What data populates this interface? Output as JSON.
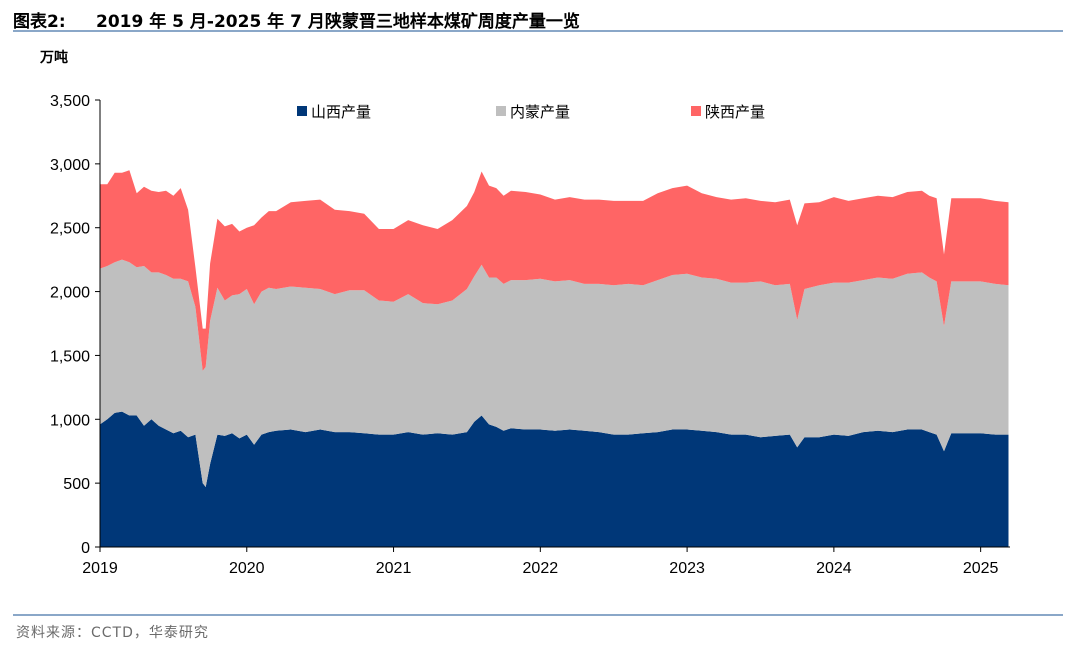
{
  "header": {
    "figure_label": "图表2:",
    "title": "2019 年 5 月-2025 年 7 月陕蒙晋三地样本煤矿周度产量一览"
  },
  "footer": {
    "source": "资料来源：CCTD，华泰研究"
  },
  "colors": {
    "shanxi": "#003778",
    "neimeng": "#bfbfbf",
    "shaanxi": "#ff6565",
    "axis": "#000000",
    "rule": "#8aa7c8"
  },
  "chart_data": {
    "type": "area",
    "stacked": true,
    "unit_label": "万吨",
    "ylim": [
      0,
      3500
    ],
    "yticks": [
      0,
      500,
      1000,
      1500,
      2000,
      2500,
      3000,
      3500
    ],
    "ytick_labels": [
      "0",
      "500",
      "1,000",
      "1,500",
      "2,000",
      "2,500",
      "3,000",
      "3,500"
    ],
    "xlim": [
      2019.0,
      2025.2
    ],
    "xticks": [
      2019,
      2020,
      2021,
      2022,
      2023,
      2024,
      2025
    ],
    "xtick_labels": [
      "2019",
      "2020",
      "2021",
      "2022",
      "2023",
      "2024",
      "2025"
    ],
    "legend_position": "top",
    "x": [
      2019.0,
      2019.05,
      2019.1,
      2019.15,
      2019.2,
      2019.25,
      2019.3,
      2019.35,
      2019.4,
      2019.45,
      2019.5,
      2019.55,
      2019.6,
      2019.65,
      2019.7,
      2019.72,
      2019.75,
      2019.8,
      2019.85,
      2019.9,
      2019.95,
      2020.0,
      2020.05,
      2020.1,
      2020.15,
      2020.2,
      2020.3,
      2020.4,
      2020.5,
      2020.6,
      2020.7,
      2020.8,
      2020.9,
      2021.0,
      2021.1,
      2021.2,
      2021.3,
      2021.4,
      2021.5,
      2021.55,
      2021.6,
      2021.65,
      2021.7,
      2021.75,
      2021.8,
      2021.9,
      2022.0,
      2022.1,
      2022.2,
      2022.3,
      2022.4,
      2022.5,
      2022.6,
      2022.7,
      2022.8,
      2022.9,
      2023.0,
      2023.1,
      2023.2,
      2023.3,
      2023.4,
      2023.5,
      2023.6,
      2023.7,
      2023.75,
      2023.8,
      2023.9,
      2024.0,
      2024.1,
      2024.2,
      2024.3,
      2024.4,
      2024.5,
      2024.6,
      2024.65,
      2024.7,
      2024.75,
      2024.8,
      2024.9,
      2025.0,
      2025.1,
      2025.19
    ],
    "series": [
      {
        "name": "山西产量",
        "values": [
          960,
          1000,
          1050,
          1060,
          1030,
          1030,
          950,
          1000,
          950,
          920,
          890,
          910,
          860,
          880,
          500,
          470,
          650,
          880,
          870,
          890,
          850,
          880,
          800,
          880,
          900,
          910,
          920,
          900,
          920,
          900,
          900,
          890,
          880,
          880,
          900,
          880,
          890,
          880,
          900,
          980,
          1030,
          960,
          940,
          910,
          930,
          920,
          920,
          910,
          920,
          910,
          900,
          880,
          880,
          890,
          900,
          920,
          920,
          910,
          900,
          880,
          880,
          860,
          870,
          880,
          780,
          860,
          860,
          880,
          870,
          900,
          910,
          900,
          920,
          920,
          900,
          880,
          750,
          890,
          890,
          890,
          880,
          880
        ]
      },
      {
        "name": "内蒙产量",
        "values": [
          1220,
          1200,
          1180,
          1190,
          1200,
          1160,
          1250,
          1150,
          1200,
          1210,
          1210,
          1190,
          1220,
          1000,
          880,
          940,
          1120,
          1150,
          1060,
          1080,
          1130,
          1140,
          1100,
          1120,
          1130,
          1110,
          1120,
          1130,
          1100,
          1080,
          1110,
          1120,
          1050,
          1040,
          1080,
          1030,
          1010,
          1050,
          1120,
          1140,
          1180,
          1150,
          1170,
          1150,
          1160,
          1170,
          1180,
          1170,
          1170,
          1150,
          1160,
          1170,
          1180,
          1160,
          1190,
          1210,
          1220,
          1200,
          1200,
          1190,
          1190,
          1220,
          1180,
          1180,
          1000,
          1160,
          1190,
          1190,
          1200,
          1190,
          1200,
          1200,
          1220,
          1230,
          1210,
          1200,
          980,
          1190,
          1190,
          1190,
          1180,
          1170
        ]
      },
      {
        "name": "陕西产量",
        "values": [
          660,
          640,
          700,
          680,
          720,
          580,
          620,
          640,
          630,
          660,
          650,
          710,
          560,
          310,
          330,
          300,
          450,
          540,
          580,
          560,
          490,
          480,
          620,
          580,
          600,
          610,
          660,
          680,
          700,
          660,
          620,
          600,
          560,
          570,
          580,
          610,
          590,
          630,
          650,
          660,
          730,
          720,
          700,
          690,
          700,
          690,
          660,
          640,
          650,
          660,
          660,
          660,
          650,
          660,
          680,
          680,
          690,
          660,
          640,
          650,
          660,
          630,
          650,
          660,
          740,
          670,
          650,
          670,
          640,
          640,
          640,
          640,
          640,
          640,
          640,
          650,
          560,
          650,
          650,
          650,
          650,
          650
        ]
      }
    ]
  }
}
